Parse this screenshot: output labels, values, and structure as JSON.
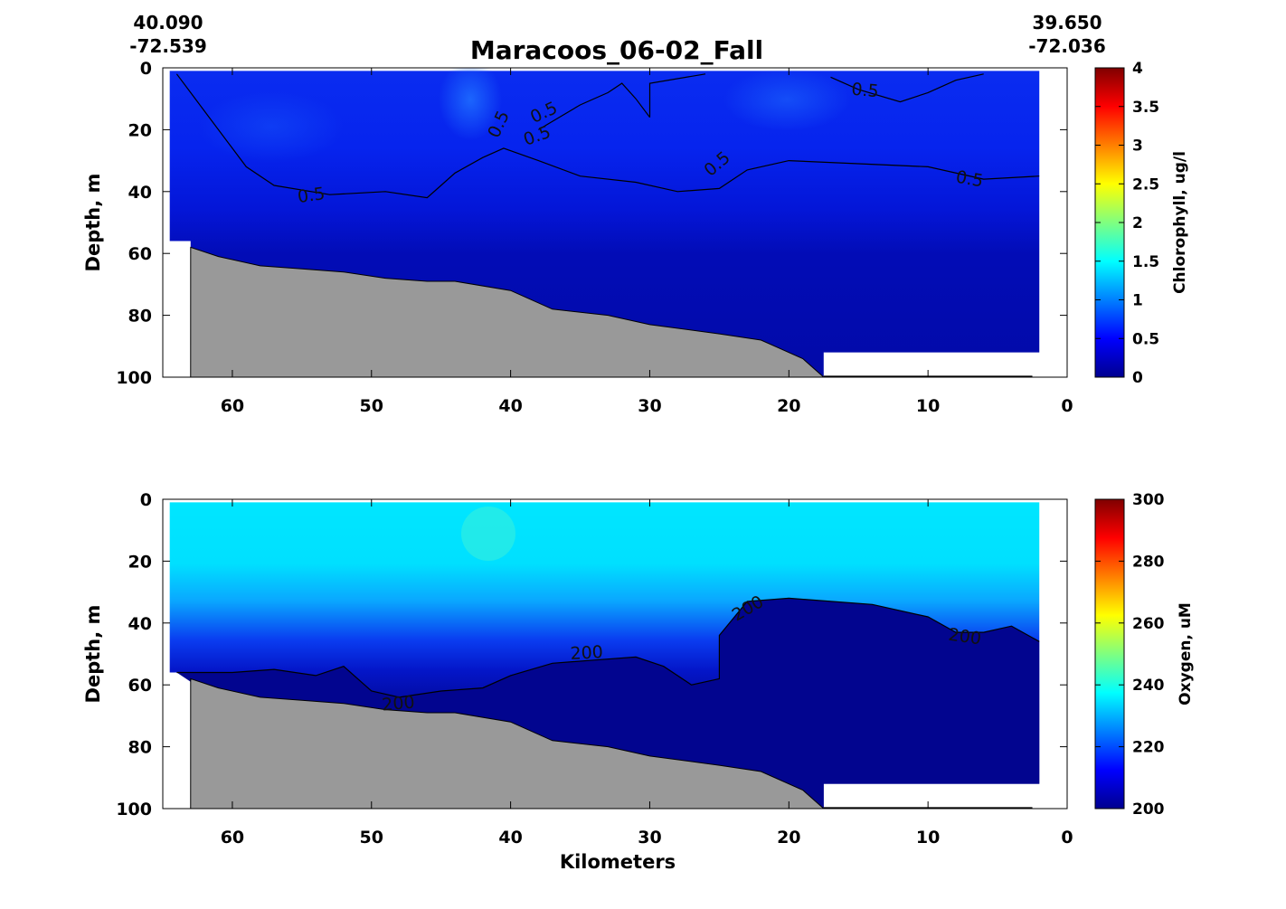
{
  "chart_data": [
    {
      "type": "heatmap",
      "title": "Maracoos_06-02_Fall",
      "corner_left": {
        "lat": "40.090",
        "lon": "-72.539"
      },
      "corner_right": {
        "lat": "39.650",
        "lon": "-72.036"
      },
      "ylabel": "Depth, m",
      "xlabel": "",
      "xlim": [
        65,
        0
      ],
      "ylim": [
        0,
        100
      ],
      "xticks": [
        "60",
        "50",
        "40",
        "30",
        "20",
        "10",
        "0"
      ],
      "yticks": [
        "0",
        "20",
        "40",
        "60",
        "80",
        "100"
      ],
      "colorbar": {
        "label": "Chlorophyll, ug/l",
        "min": 0,
        "max": 4,
        "ticks": [
          "0",
          "0.5",
          "1",
          "1.5",
          "2",
          "2.5",
          "3",
          "3.5",
          "4"
        ]
      },
      "contour_value": 0.5,
      "contour_labels": [
        "0.5",
        "0.5",
        "0.5",
        "0.5",
        "0.5",
        "0.5",
        "0.5"
      ],
      "data_extent_x": [
        64.5,
        2
      ],
      "contour": [
        [
          64,
          2
        ],
        [
          63,
          8
        ],
        [
          61,
          20
        ],
        [
          59,
          32
        ],
        [
          57,
          38
        ],
        [
          53,
          41
        ],
        [
          49,
          40
        ],
        [
          46,
          42
        ],
        [
          45,
          38
        ],
        [
          44,
          34
        ],
        [
          42,
          29
        ],
        [
          40.5,
          26
        ],
        [
          38,
          30
        ],
        [
          35,
          35
        ],
        [
          31,
          37
        ],
        [
          28,
          40
        ],
        [
          25,
          39
        ],
        [
          23,
          33
        ],
        [
          20,
          30
        ],
        [
          15,
          31
        ],
        [
          10,
          32
        ],
        [
          6,
          36
        ],
        [
          2,
          35
        ]
      ],
      "contour_upper": [
        [
          38,
          20
        ],
        [
          35,
          12
        ],
        [
          33,
          8
        ],
        [
          32,
          5
        ],
        [
          31,
          10
        ],
        [
          30,
          16
        ]
      ],
      "contour_right": [
        [
          30,
          16
        ],
        [
          30,
          5
        ],
        [
          26,
          2
        ]
      ],
      "contour_small": [
        [
          17,
          3
        ],
        [
          15,
          7
        ],
        [
          12,
          11
        ],
        [
          10,
          8
        ],
        [
          8,
          4
        ],
        [
          6,
          2
        ]
      ]
    },
    {
      "type": "heatmap",
      "ylabel": "Depth, m",
      "xlabel": "Kilometers",
      "xlim": [
        65,
        0
      ],
      "ylim": [
        0,
        100
      ],
      "xticks": [
        "60",
        "50",
        "40",
        "30",
        "20",
        "10",
        "0"
      ],
      "yticks": [
        "0",
        "20",
        "40",
        "60",
        "80",
        "100"
      ],
      "colorbar": {
        "label": "Oxygen, uM",
        "min": 200,
        "max": 300,
        "ticks": [
          "200",
          "220",
          "240",
          "260",
          "280",
          "300"
        ]
      },
      "contour_value": 200,
      "contour_labels": [
        "200",
        "200",
        "200",
        "200"
      ],
      "data_extent_x": [
        64.5,
        2
      ],
      "contour": [
        [
          64,
          56
        ],
        [
          60,
          56
        ],
        [
          57,
          55
        ],
        [
          54,
          57
        ],
        [
          52,
          54
        ],
        [
          50,
          62
        ],
        [
          48,
          64
        ],
        [
          45,
          62
        ],
        [
          42,
          61
        ],
        [
          40,
          57
        ],
        [
          37,
          53
        ],
        [
          34,
          52
        ],
        [
          31,
          51
        ],
        [
          29,
          54
        ],
        [
          27,
          60
        ],
        [
          25,
          58
        ],
        [
          25,
          44
        ],
        [
          23,
          33
        ],
        [
          20,
          32
        ],
        [
          14,
          34
        ],
        [
          10,
          38
        ],
        [
          8,
          43
        ],
        [
          6,
          43
        ],
        [
          4,
          41
        ],
        [
          2,
          46
        ]
      ]
    }
  ],
  "bathymetry": [
    [
      63,
      58
    ],
    [
      61,
      61
    ],
    [
      58,
      64
    ],
    [
      55,
      65
    ],
    [
      52,
      66
    ],
    [
      49,
      68
    ],
    [
      46,
      69
    ],
    [
      44,
      69
    ],
    [
      40,
      72
    ],
    [
      37,
      78
    ],
    [
      33,
      80
    ],
    [
      30,
      83
    ],
    [
      25,
      86
    ],
    [
      22,
      88
    ],
    [
      19,
      94
    ],
    [
      17.5,
      100
    ]
  ],
  "colors": {
    "land": "#999999"
  }
}
